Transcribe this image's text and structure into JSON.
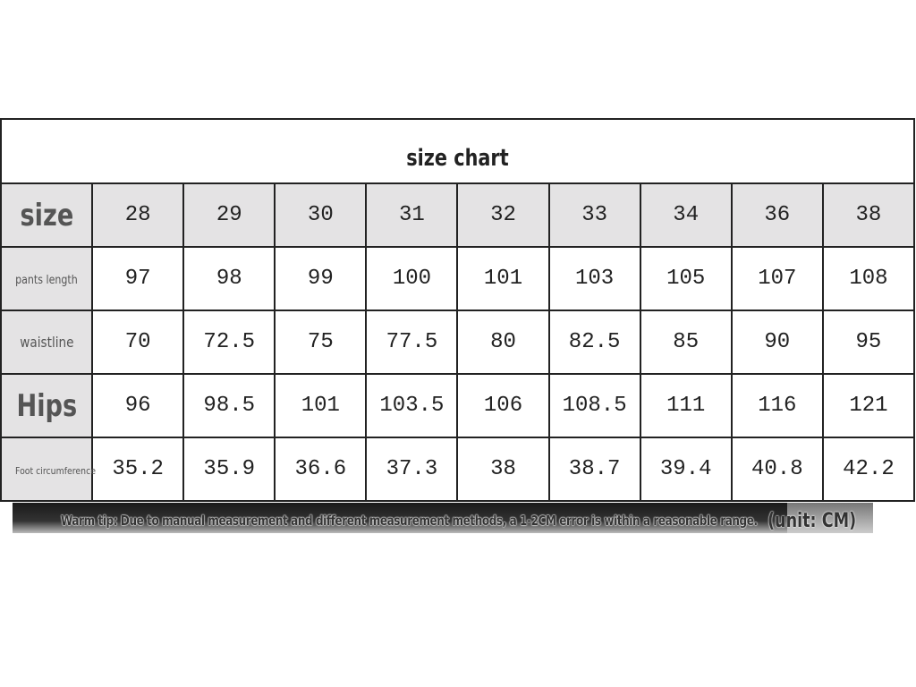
{
  "title": "size chart",
  "row_headers": [
    "size",
    "pants length",
    "waistline",
    "Hips",
    "Foot circumference"
  ],
  "sizes": [
    "28",
    "29",
    "30",
    "31",
    "32",
    "33",
    "34",
    "36",
    "38"
  ],
  "rows": [
    [
      "97",
      "98",
      "99",
      "100",
      "101",
      "103",
      "105",
      "107",
      "108"
    ],
    [
      "70",
      "72.5",
      "75",
      "77.5",
      "80",
      "82.5",
      "85",
      "90",
      "95"
    ],
    [
      "96",
      "98.5",
      "101",
      "103.5",
      "106",
      "108.5",
      "111",
      "116",
      "121"
    ],
    [
      "35.2",
      "35.9",
      "36.6",
      "37.3",
      "38",
      "38.7",
      "39.4",
      "40.8",
      "42.2"
    ]
  ],
  "tip": "Warm tip: Due to manual measurement and different measurement methods, a 1-2CM error is within a reasonable range.",
  "unit": "(unit: CM)"
}
